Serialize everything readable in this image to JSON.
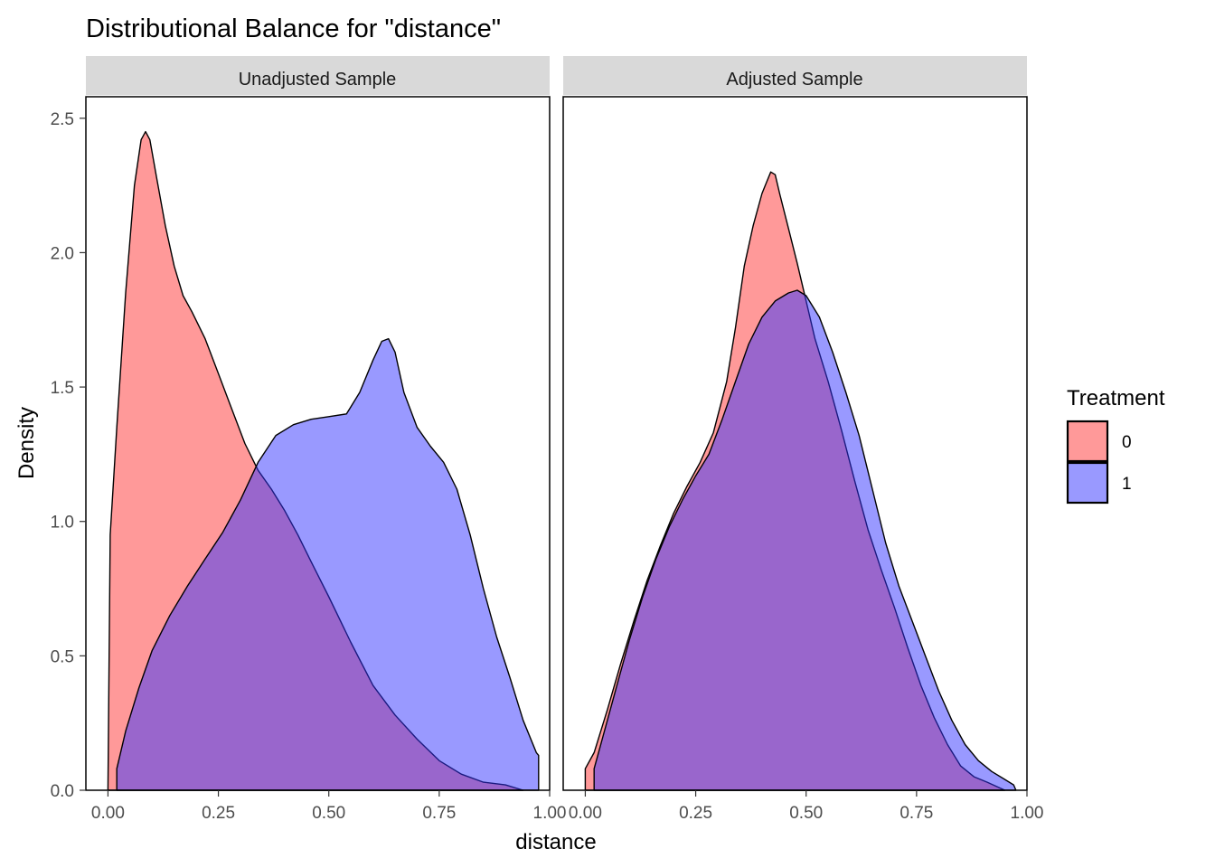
{
  "chart_data": {
    "type": "area",
    "title": "Distributional Balance for \"distance\"",
    "xlabel": "distance",
    "ylabel": "Density",
    "xlim": [
      -0.05,
      1.0
    ],
    "ylim": [
      0,
      2.58
    ],
    "x_ticks": [
      "0.00",
      "0.25",
      "0.50",
      "0.75",
      "1.00"
    ],
    "x_tick_values": [
      0,
      0.25,
      0.5,
      0.75,
      1.0
    ],
    "y_ticks": [
      "0.0",
      "0.5",
      "1.0",
      "1.5",
      "2.0",
      "2.5"
    ],
    "y_tick_values": [
      0,
      0.5,
      1.0,
      1.5,
      2.0,
      2.5
    ],
    "grid": false,
    "legend": {
      "title": "Treatment",
      "placement": "right",
      "entries": [
        {
          "label": "0",
          "color": "#ff3333"
        },
        {
          "label": "1",
          "color": "#3333ff"
        }
      ]
    },
    "panels": [
      {
        "label": "Unadjusted Sample",
        "series": [
          {
            "name": "0",
            "color": "#ff3333",
            "x": [
              0.0,
              0.005,
              0.02,
              0.04,
              0.06,
              0.075,
              0.085,
              0.095,
              0.11,
              0.13,
              0.15,
              0.17,
              0.19,
              0.22,
              0.25,
              0.28,
              0.31,
              0.34,
              0.37,
              0.4,
              0.43,
              0.46,
              0.5,
              0.55,
              0.6,
              0.65,
              0.7,
              0.75,
              0.8,
              0.85,
              0.9,
              0.94
            ],
            "y": [
              0.0,
              0.95,
              1.35,
              1.85,
              2.25,
              2.42,
              2.45,
              2.42,
              2.28,
              2.1,
              1.95,
              1.84,
              1.78,
              1.68,
              1.55,
              1.42,
              1.29,
              1.19,
              1.12,
              1.04,
              0.95,
              0.85,
              0.72,
              0.55,
              0.39,
              0.28,
              0.19,
              0.11,
              0.06,
              0.03,
              0.02,
              0.0
            ]
          },
          {
            "name": "1",
            "color": "#3333ff",
            "x": [
              0.02,
              0.02,
              0.04,
              0.07,
              0.1,
              0.14,
              0.18,
              0.22,
              0.26,
              0.3,
              0.34,
              0.38,
              0.42,
              0.46,
              0.5,
              0.54,
              0.57,
              0.6,
              0.62,
              0.635,
              0.65,
              0.67,
              0.7,
              0.73,
              0.76,
              0.79,
              0.82,
              0.85,
              0.88,
              0.91,
              0.94,
              0.97,
              0.975,
              0.975
            ],
            "y": [
              0.0,
              0.08,
              0.22,
              0.38,
              0.52,
              0.65,
              0.76,
              0.86,
              0.96,
              1.08,
              1.22,
              1.32,
              1.36,
              1.38,
              1.39,
              1.4,
              1.48,
              1.6,
              1.67,
              1.68,
              1.63,
              1.48,
              1.35,
              1.28,
              1.22,
              1.12,
              0.95,
              0.75,
              0.57,
              0.42,
              0.26,
              0.14,
              0.13,
              0.0
            ]
          }
        ]
      },
      {
        "label": "Adjusted Sample",
        "series": [
          {
            "name": "0",
            "color": "#ff3333",
            "x": [
              0.0,
              0.0,
              0.02,
              0.05,
              0.08,
              0.11,
              0.14,
              0.17,
              0.2,
              0.23,
              0.26,
              0.29,
              0.32,
              0.34,
              0.36,
              0.38,
              0.4,
              0.41,
              0.42,
              0.43,
              0.44,
              0.46,
              0.48,
              0.5,
              0.52,
              0.55,
              0.58,
              0.61,
              0.64,
              0.67,
              0.7,
              0.73,
              0.76,
              0.79,
              0.82,
              0.85,
              0.88,
              0.91,
              0.95,
              0.95
            ],
            "y": [
              0.0,
              0.08,
              0.14,
              0.3,
              0.47,
              0.63,
              0.78,
              0.91,
              1.03,
              1.13,
              1.22,
              1.33,
              1.52,
              1.72,
              1.95,
              2.1,
              2.22,
              2.26,
              2.3,
              2.29,
              2.22,
              2.09,
              1.96,
              1.82,
              1.68,
              1.52,
              1.34,
              1.15,
              0.97,
              0.82,
              0.68,
              0.53,
              0.39,
              0.27,
              0.17,
              0.09,
              0.05,
              0.03,
              0.0,
              0.0
            ]
          },
          {
            "name": "1",
            "color": "#3333ff",
            "x": [
              0.02,
              0.02,
              0.04,
              0.07,
              0.1,
              0.13,
              0.16,
              0.19,
              0.22,
              0.25,
              0.28,
              0.31,
              0.34,
              0.37,
              0.4,
              0.43,
              0.46,
              0.48,
              0.5,
              0.53,
              0.56,
              0.59,
              0.62,
              0.65,
              0.68,
              0.71,
              0.74,
              0.77,
              0.8,
              0.83,
              0.86,
              0.89,
              0.92,
              0.95,
              0.97,
              0.975,
              0.975
            ],
            "y": [
              0.0,
              0.08,
              0.2,
              0.38,
              0.56,
              0.72,
              0.86,
              0.98,
              1.08,
              1.17,
              1.25,
              1.38,
              1.52,
              1.66,
              1.76,
              1.82,
              1.85,
              1.86,
              1.84,
              1.76,
              1.63,
              1.48,
              1.32,
              1.12,
              0.92,
              0.76,
              0.63,
              0.5,
              0.37,
              0.26,
              0.17,
              0.11,
              0.07,
              0.04,
              0.02,
              0.0,
              0.0
            ]
          }
        ]
      }
    ]
  }
}
